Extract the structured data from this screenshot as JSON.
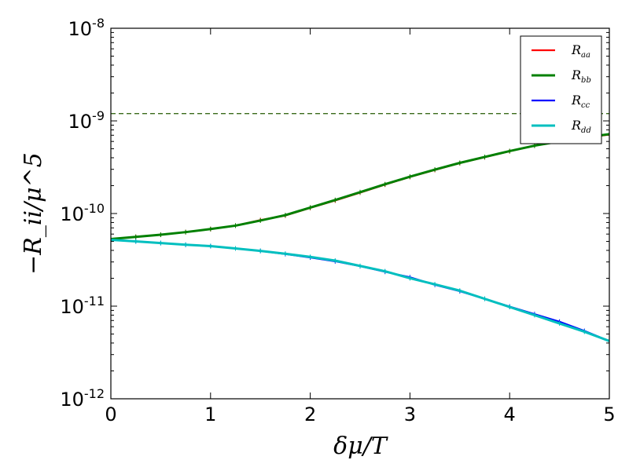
{
  "chart_data": {
    "type": "line",
    "title": "",
    "xlabel": "δμ/T",
    "ylabel": "−R_ii/μ^5",
    "xlim": [
      0,
      5
    ],
    "ylim": [
      1e-12,
      1e-08
    ],
    "y_scale": "log",
    "grid": false,
    "legend_position": "top-right",
    "x_ticks": [
      "0",
      "1",
      "2",
      "3",
      "4",
      "5"
    ],
    "y_ticks": [
      {
        "base": "10",
        "exp": "-8",
        "value": 1e-08
      },
      {
        "base": "10",
        "exp": "-9",
        "value": 1e-09
      },
      {
        "base": "10",
        "exp": "-10",
        "value": 1e-10
      },
      {
        "base": "10",
        "exp": "-11",
        "value": 1e-11
      },
      {
        "base": "10",
        "exp": "-12",
        "value": 1e-12
      }
    ],
    "x": [
      0,
      0.25,
      0.5,
      0.75,
      1.0,
      1.25,
      1.5,
      1.75,
      2.0,
      2.25,
      2.5,
      2.75,
      3.0,
      3.25,
      3.5,
      3.75,
      4.0,
      4.25,
      4.5,
      4.75,
      5.0
    ],
    "series": [
      {
        "name": "R",
        "sub": "aa",
        "color": "#ff0000",
        "width": 2.2,
        "values": [
          5.3e-11,
          5.6e-11,
          5.9e-11,
          6.3e-11,
          6.8e-11,
          7.4e-11,
          8.5e-11,
          9.5e-11,
          1.15e-10,
          1.38e-10,
          1.68e-10,
          2.05e-10,
          2.48e-10,
          2.95e-10,
          3.5e-10,
          4.05e-10,
          4.7e-10,
          5.4e-10,
          6e-10,
          6.6e-10,
          7.1e-10
        ]
      },
      {
        "name": "R",
        "sub": "bb",
        "color": "#008000",
        "width": 3.0,
        "values": [
          5.3e-11,
          5.6e-11,
          5.9e-11,
          6.3e-11,
          6.8e-11,
          7.4e-11,
          8.4e-11,
          9.6e-11,
          1.16e-10,
          1.4e-10,
          1.7e-10,
          2.07e-10,
          2.5e-10,
          2.98e-10,
          3.52e-10,
          4.08e-10,
          4.72e-10,
          5.4e-10,
          6e-10,
          6.6e-10,
          7.2e-10
        ]
      },
      {
        "name": "R",
        "sub": "cc",
        "color": "#0000ff",
        "width": 2.2,
        "values": [
          5.2e-11,
          5e-11,
          4.8e-11,
          4.6e-11,
          4.45e-11,
          4.2e-11,
          3.95e-11,
          3.65e-11,
          3.35e-11,
          3.05e-11,
          2.7e-11,
          2.35e-11,
          2.05e-11,
          1.7e-11,
          1.45e-11,
          1.2e-11,
          9.9e-12,
          8.2e-12,
          6.8e-12,
          5.4e-12,
          4.2e-12
        ]
      },
      {
        "name": "R",
        "sub": "dd",
        "color": "#00bfbf",
        "width": 3.0,
        "values": [
          5.2e-11,
          5e-11,
          4.8e-11,
          4.6e-11,
          4.45e-11,
          4.2e-11,
          3.95e-11,
          3.68e-11,
          3.4e-11,
          3.1e-11,
          2.72e-11,
          2.38e-11,
          2e-11,
          1.72e-11,
          1.47e-11,
          1.2e-11,
          9.8e-12,
          8e-12,
          6.5e-12,
          5.3e-12,
          4.2e-12
        ]
      }
    ],
    "reference_line": {
      "y": 1.2e-09,
      "color": "#3a6b1a",
      "style": "dashed"
    }
  }
}
